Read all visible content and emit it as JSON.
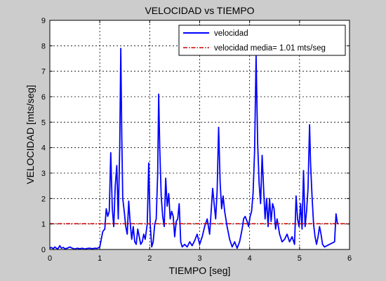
{
  "chart_data": {
    "type": "line",
    "title": "VELOCIDAD vs TIEMPO",
    "xlabel": "TIEMPO [seg]",
    "ylabel": "VELOCIDAD [mts/seg]",
    "xlim": [
      0,
      6
    ],
    "ylim": [
      0,
      9
    ],
    "xticks": [
      0,
      1,
      2,
      3,
      4,
      5,
      6
    ],
    "yticks": [
      0,
      1,
      2,
      3,
      4,
      5,
      6,
      7,
      8,
      9
    ],
    "grid": true,
    "legend_position": "top-right",
    "background_color": "#cccccc",
    "plot_color": "#ffffff",
    "series": [
      {
        "name": "velocidad",
        "color": "#0000ff",
        "style": "solid",
        "x": [
          0,
          0.03,
          0.07,
          0.1,
          0.13,
          0.16,
          0.2,
          0.23,
          0.27,
          0.3,
          0.35,
          0.4,
          0.45,
          0.5,
          0.55,
          0.6,
          0.65,
          0.7,
          0.75,
          0.8,
          0.85,
          0.9,
          0.95,
          1.0,
          1.03,
          1.06,
          1.1,
          1.13,
          1.16,
          1.19,
          1.22,
          1.25,
          1.28,
          1.31,
          1.34,
          1.37,
          1.4,
          1.42,
          1.44,
          1.46,
          1.49,
          1.52,
          1.55,
          1.58,
          1.61,
          1.64,
          1.67,
          1.7,
          1.73,
          1.76,
          1.79,
          1.82,
          1.85,
          1.88,
          1.91,
          1.95,
          1.98,
          2.01,
          2.04,
          2.07,
          2.1,
          2.13,
          2.16,
          2.18,
          2.2,
          2.23,
          2.26,
          2.29,
          2.32,
          2.35,
          2.38,
          2.41,
          2.44,
          2.47,
          2.5,
          2.53,
          2.56,
          2.59,
          2.62,
          2.65,
          2.7,
          2.75,
          2.8,
          2.85,
          2.9,
          2.95,
          3.0,
          3.05,
          3.1,
          3.15,
          3.2,
          3.23,
          3.26,
          3.29,
          3.32,
          3.35,
          3.38,
          3.41,
          3.44,
          3.47,
          3.5,
          3.55,
          3.6,
          3.65,
          3.7,
          3.75,
          3.8,
          3.85,
          3.88,
          3.91,
          3.95,
          3.98,
          4.01,
          4.04,
          4.07,
          4.1,
          4.13,
          4.16,
          4.19,
          4.22,
          4.25,
          4.28,
          4.31,
          4.34,
          4.37,
          4.4,
          4.43,
          4.46,
          4.49,
          4.52,
          4.55,
          4.6,
          4.65,
          4.7,
          4.75,
          4.8,
          4.85,
          4.9,
          4.93,
          4.96,
          4.99,
          5.02,
          5.05,
          5.08,
          5.11,
          5.14,
          5.17,
          5.2,
          5.22,
          5.25,
          5.28,
          5.31,
          5.34,
          5.37,
          5.4,
          5.43,
          5.46,
          5.5,
          5.55,
          5.6,
          5.65,
          5.7,
          5.73,
          5.76
        ],
        "y": [
          0.05,
          0.08,
          0.03,
          0.1,
          0.05,
          0.02,
          0.15,
          0.05,
          0.08,
          0.03,
          0.05,
          0.1,
          0.05,
          0.02,
          0.05,
          0.03,
          0.05,
          0.02,
          0.04,
          0.05,
          0.03,
          0.05,
          0.04,
          0.1,
          0.4,
          0.7,
          0.8,
          1.6,
          1.3,
          1.5,
          3.8,
          1.6,
          0.9,
          2.5,
          3.3,
          1.2,
          4.0,
          7.9,
          4.5,
          2.0,
          1.5,
          0.9,
          0.6,
          1.9,
          1.0,
          0.4,
          0.9,
          0.3,
          0.2,
          0.8,
          0.5,
          0.2,
          0.3,
          0.6,
          0.4,
          1.0,
          3.4,
          1.0,
          0.1,
          0.3,
          1.0,
          1.2,
          3.0,
          6.1,
          4.0,
          2.1,
          1.3,
          0.9,
          2.8,
          1.7,
          2.2,
          1.2,
          1.5,
          1.3,
          0.5,
          1.1,
          1.2,
          1.8,
          0.3,
          0.1,
          0.2,
          0.1,
          0.3,
          0.15,
          0.35,
          0.6,
          0.2,
          0.5,
          0.9,
          1.2,
          0.6,
          1.5,
          2.4,
          1.8,
          1.2,
          2.3,
          4.8,
          2.6,
          1.6,
          2.1,
          1.5,
          0.9,
          0.4,
          0.1,
          0.3,
          0.05,
          0.3,
          0.8,
          1.2,
          1.3,
          1.1,
          0.9,
          1.3,
          1.5,
          2.2,
          3.9,
          7.6,
          4.2,
          2.6,
          1.8,
          3.7,
          2.4,
          1.2,
          2.0,
          0.9,
          2.0,
          1.1,
          1.8,
          1.6,
          0.8,
          1.2,
          0.6,
          0.3,
          0.4,
          0.6,
          0.3,
          0.5,
          0.2,
          2.1,
          1.2,
          0.9,
          1.8,
          0.8,
          3.1,
          0.9,
          1.5,
          2.4,
          4.9,
          3.4,
          2.1,
          1.0,
          0.5,
          0.2,
          0.5,
          0.9,
          0.6,
          0.2,
          0.1,
          0.15,
          0.2,
          0.25,
          0.3,
          1.4,
          1.0
        ]
      },
      {
        "name": "velocidad media= 1.01 mts/seg",
        "color": "#cc0000",
        "style": "dashdot",
        "x": [
          0,
          6
        ],
        "y": [
          1.01,
          1.01
        ]
      }
    ]
  }
}
